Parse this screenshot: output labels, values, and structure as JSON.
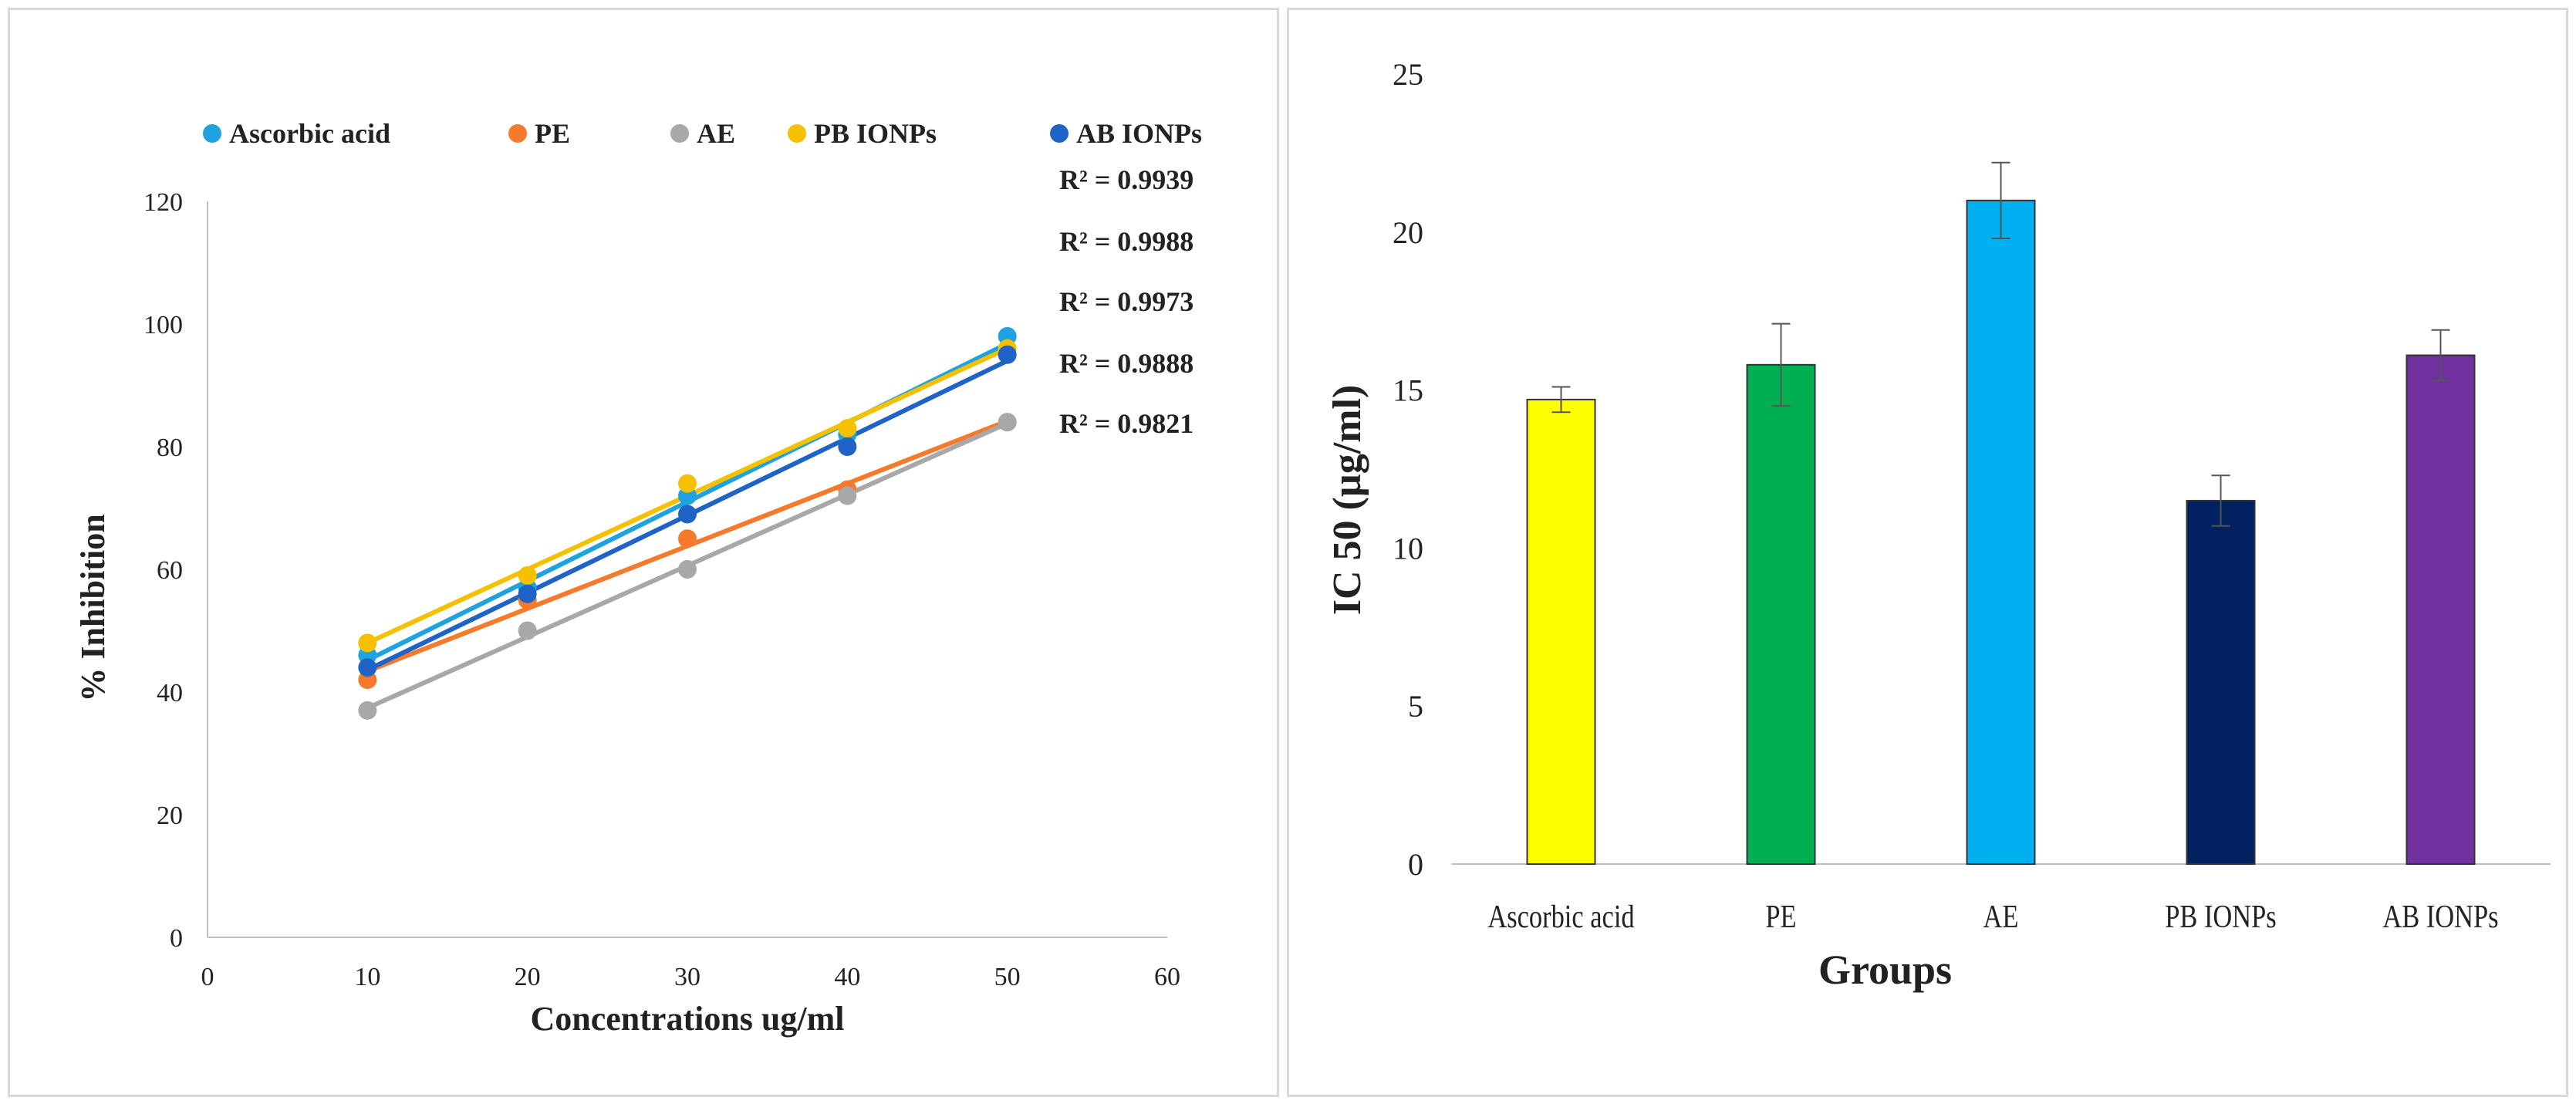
{
  "chart_data": [
    {
      "type": "scatter",
      "title": "",
      "xlabel": "Concentrations ug/ml",
      "ylabel": "% Inhibition",
      "xlim": [
        0,
        60
      ],
      "ylim": [
        0,
        120
      ],
      "xticks": [
        0,
        10,
        20,
        30,
        40,
        50,
        60
      ],
      "yticks": [
        0,
        20,
        40,
        60,
        80,
        100,
        120
      ],
      "legend_position": "top",
      "trendline": "linear",
      "series": [
        {
          "name": "Ascorbic acid",
          "color": "#1fa2e0",
          "x": [
            10,
            20,
            30,
            40,
            50
          ],
          "y": [
            46,
            57,
            72,
            82,
            98
          ],
          "r2": "R² = 0.9939"
        },
        {
          "name": "PE",
          "color": "#f57a2c",
          "x": [
            10,
            20,
            30,
            40,
            50
          ],
          "y": [
            42,
            55,
            65,
            73,
            84
          ],
          "r2": "R² = 0.9988"
        },
        {
          "name": "AE",
          "color": "#a8a8a8",
          "x": [
            10,
            20,
            30,
            40,
            50
          ],
          "y": [
            37,
            50,
            60,
            72,
            84
          ],
          "r2": "R² = 0.9973"
        },
        {
          "name": "PB IONPs",
          "color": "#f5c000",
          "x": [
            10,
            20,
            30,
            40,
            50
          ],
          "y": [
            48,
            59,
            74,
            83,
            96
          ],
          "r2": "R² = 0.9888"
        },
        {
          "name": "AB IONPs",
          "color": "#1f63c6",
          "x": [
            10,
            20,
            30,
            40,
            50
          ],
          "y": [
            44,
            56,
            69,
            80,
            95
          ],
          "r2": "R² = 0.9821"
        }
      ]
    },
    {
      "type": "bar",
      "title": "",
      "xlabel": "Groups",
      "ylabel": "IC 50 (µg/ml)",
      "ylim": [
        0,
        25
      ],
      "yticks": [
        0,
        5,
        10,
        15,
        20,
        25
      ],
      "categories": [
        "Ascorbic acid",
        "PE",
        "AE",
        "PB IONPs",
        "AB IONPs"
      ],
      "values": [
        14.7,
        15.8,
        21.0,
        11.5,
        16.1
      ],
      "errors": [
        0.4,
        1.3,
        1.2,
        0.8,
        0.8
      ],
      "colors": [
        "#ffff00",
        "#00b050",
        "#00b0f0",
        "#002060",
        "#7030a0"
      ]
    }
  ]
}
